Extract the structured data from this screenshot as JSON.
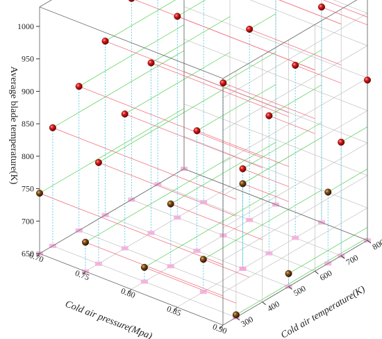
{
  "chart_data": {
    "type": "scatter",
    "projection": "3d",
    "xlabel": "Cold air pressure(Mpa)",
    "ylabel": "Cold air temperature(K)",
    "zlabel": "Average blade temperature(K)",
    "xlim": [
      0.7,
      0.9
    ],
    "ylim": [
      250,
      800
    ],
    "zlim": [
      650,
      1030
    ],
    "x_ticks": [
      "0.70",
      "0.75",
      "0.80",
      "0.85",
      "0.90"
    ],
    "y_ticks": [
      "300",
      "400",
      "500",
      "600",
      "700",
      "800"
    ],
    "z_ticks": [
      "650",
      "700",
      "750",
      "800",
      "850",
      "900",
      "950",
      "1000"
    ],
    "grid": true,
    "colors": {
      "upper_points": "#cc1010",
      "lower_points": "#7a4a14",
      "drop_lines": "#55c8e0",
      "x_guides": "#f06070",
      "y_guides": "#50d050",
      "grid": "#c0c0c0",
      "floor_marker": "#f3a8d8"
    },
    "series": [
      {
        "marker": "upper",
        "points": [
          {
            "x": 0.7,
            "y": 300,
            "z": 832
          },
          {
            "x": 0.7,
            "y": 400,
            "z": 872
          },
          {
            "x": 0.7,
            "y": 500,
            "z": 918
          },
          {
            "x": 0.7,
            "y": 600,
            "z": 960
          },
          {
            "x": 0.7,
            "y": 700,
            "z": 1007
          },
          {
            "x": 0.7,
            "y": 800,
            "z": 1032
          },
          {
            "x": 0.75,
            "y": 300,
            "z": 806
          },
          {
            "x": 0.75,
            "y": 400,
            "z": 857
          },
          {
            "x": 0.75,
            "y": 500,
            "z": 912
          },
          {
            "x": 0.75,
            "y": 600,
            "z": 960
          },
          {
            "x": 0.75,
            "y": 700,
            "z": 1007
          },
          {
            "x": 0.8,
            "y": 500,
            "z": 835
          },
          {
            "x": 0.8,
            "y": 600,
            "z": 885
          },
          {
            "x": 0.8,
            "y": 700,
            "z": 944
          },
          {
            "x": 0.8,
            "y": 800,
            "z": 994
          },
          {
            "x": 0.85,
            "y": 500,
            "z": 804
          },
          {
            "x": 0.85,
            "y": 600,
            "z": 862
          },
          {
            "x": 0.85,
            "y": 700,
            "z": 916
          },
          {
            "x": 0.85,
            "y": 800,
            "z": 982
          },
          {
            "x": 0.9,
            "y": 700,
            "z": 825
          },
          {
            "x": 0.9,
            "y": 800,
            "z": 897
          }
        ]
      },
      {
        "marker": "lower",
        "points": [
          {
            "x": 0.7,
            "y": 250,
            "z": 743
          },
          {
            "x": 0.75,
            "y": 250,
            "z": 695
          },
          {
            "x": 0.8,
            "y": 300,
            "z": 672
          },
          {
            "x": 0.8,
            "y": 400,
            "z": 746
          },
          {
            "x": 0.85,
            "y": 350,
            "z": 700
          },
          {
            "x": 0.85,
            "y": 500,
            "z": 781
          },
          {
            "x": 0.9,
            "y": 300,
            "z": 654
          },
          {
            "x": 0.9,
            "y": 500,
            "z": 670
          },
          {
            "x": 0.9,
            "y": 650,
            "z": 760
          }
        ]
      }
    ]
  }
}
